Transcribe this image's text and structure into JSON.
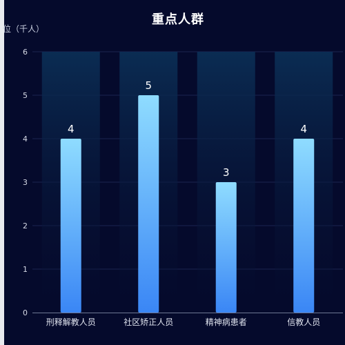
{
  "chart_data": {
    "type": "bar",
    "title": "重点人群",
    "y_unit_label": "位（千人）",
    "categories": [
      "刑释解教人员",
      "社区矫正人员",
      "精神病患者",
      "信教人员"
    ],
    "values": [
      4,
      5,
      3,
      4
    ],
    "ylim": [
      0,
      6
    ],
    "y_ticks": [
      "0",
      "1",
      "2",
      "3",
      "4",
      "5",
      "6"
    ],
    "grid": true,
    "data_labels": true,
    "colors": {
      "background": "#050a2c",
      "bar_top": "#8fdcff",
      "bar_bottom": "#3a86f5",
      "shadow_top": "#0b2e55",
      "shadow_bottom": "#050a2c",
      "grid": "#1a2450"
    }
  }
}
